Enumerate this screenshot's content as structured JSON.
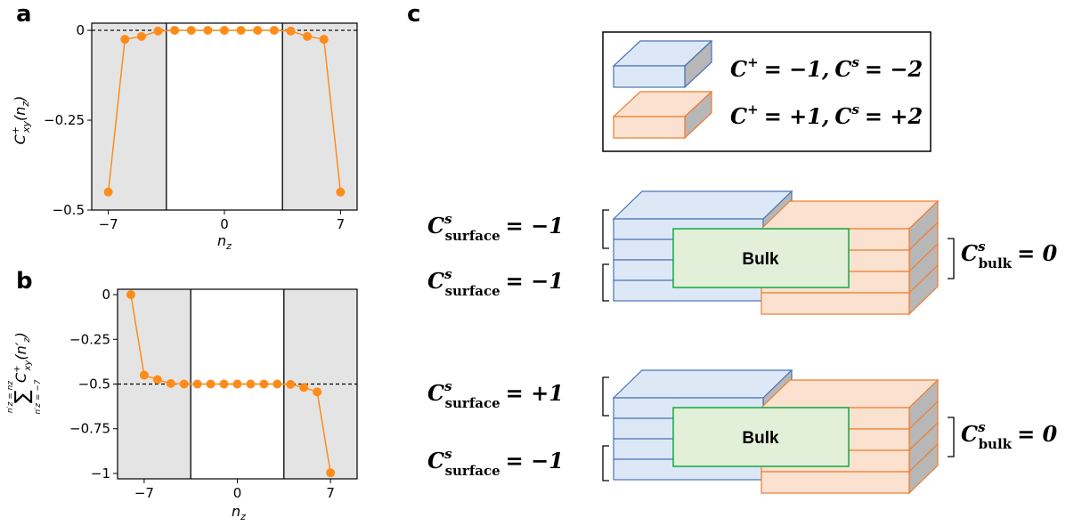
{
  "panels": {
    "a": "a",
    "b": "b",
    "c": "c"
  },
  "colors": {
    "orange": "#ff8c1a",
    "shade": "#e4e4e4",
    "blue_fill": "#dde8f6",
    "blue_edge": "#4a72b8",
    "orange_fill": "#fbe1cf",
    "orange_edge": "#ed7d31",
    "side_fill": "#b7b7b7",
    "bulk_fill": "#e2efd9",
    "bulk_edge": "#1fae4a"
  },
  "chart_data": [
    {
      "panel": "a",
      "type": "line",
      "marker": "circle",
      "x": [
        -7,
        -6,
        -5,
        -4,
        -3,
        -2,
        -1,
        0,
        1,
        2,
        3,
        4,
        5,
        6,
        7
      ],
      "values": [
        -0.45,
        -0.025,
        -0.017,
        -0.002,
        0,
        0,
        0,
        0,
        0,
        0,
        0,
        -0.002,
        -0.017,
        -0.025,
        -0.45
      ],
      "xlabel_base": "n",
      "xlabel_sub": "z",
      "ylabel": "C",
      "ylabel_sup": "+",
      "ylabel_sub": "xy",
      "ylabel_arg": "(n",
      "ylabel_arg_sub": "z",
      "ylabel_close": ")",
      "xticks": [
        -7,
        0,
        7
      ],
      "xtick_labels": [
        "−7",
        "0",
        "7"
      ],
      "yticks": [
        0,
        -0.25,
        -0.5
      ],
      "ytick_labels": [
        "0",
        "−0.25",
        "−0.5"
      ],
      "xlim": [
        -8,
        8
      ],
      "ylim": [
        -0.5,
        0.02
      ],
      "dashed_reference_y": 0,
      "shaded_x_ranges": [
        [
          -8,
          -3.5
        ],
        [
          3.5,
          8
        ]
      ],
      "vertical_lines_x": [
        -3.5,
        3.5
      ]
    },
    {
      "panel": "b",
      "type": "line",
      "marker": "circle",
      "x": [
        -8,
        -7,
        -6,
        -5,
        -4,
        -3,
        -2,
        -1,
        0,
        1,
        2,
        3,
        4,
        5,
        6,
        7
      ],
      "values": [
        0,
        -0.45,
        -0.475,
        -0.497,
        -0.5,
        -0.5,
        -0.5,
        -0.5,
        -0.5,
        -0.5,
        -0.5,
        -0.5,
        -0.502,
        -0.519,
        -0.544,
        -0.996
      ],
      "xlabel_base": "n",
      "xlabel_sub": "z",
      "ylabel_sum_top": "n′z = nz",
      "ylabel_sum_symbol": "∑",
      "ylabel_sum_bottom": "n′z = −7",
      "ylabel_term": "C",
      "ylabel_term_sup": "+",
      "ylabel_term_sub": "xy",
      "ylabel_term_arg": "(n′",
      "ylabel_term_arg_sub": "z",
      "ylabel_term_close": ")",
      "xticks": [
        -7,
        0,
        7
      ],
      "xtick_labels": [
        "−7",
        "0",
        "7"
      ],
      "yticks": [
        0,
        -0.25,
        -0.5,
        -0.75,
        -1
      ],
      "ytick_labels": [
        "0",
        "−0.25",
        "−0.5",
        "−0.75",
        "−1"
      ],
      "xlim": [
        -9,
        9
      ],
      "ylim": [
        -1.03,
        0.03
      ],
      "dashed_reference_y": -0.5,
      "shaded_x_ranges": [
        [
          -9,
          -3.5
        ],
        [
          3.5,
          9
        ]
      ],
      "vertical_lines_x": [
        -3.5,
        3.5
      ]
    }
  ],
  "legend": [
    {
      "text": "C⁺ = −1, Cˢ = −2",
      "color": "blue"
    },
    {
      "text": "C⁺ = +1, Cˢ = +2",
      "color": "orange"
    }
  ],
  "diagram_top": {
    "surface_top": "Cˢsurface = −1",
    "surface_bottom": "Cˢsurface = −1",
    "bulk_value": "Cˢbulk = 0",
    "bulk_label": "Bulk"
  },
  "diagram_bottom": {
    "surface_top": "Cˢsurface = +1",
    "surface_bottom": "Cˢsurface = −1",
    "bulk_value": "Cˢbulk = 0",
    "bulk_label": "Bulk"
  },
  "math": {
    "C": "C",
    "s": "s",
    "plus": "+",
    "surface": "surface",
    "bulk": "bulk",
    "eq_m1": "= −1",
    "eq_p1": "= +1",
    "eq_0": "= 0",
    "leg1_a": "= −1,",
    "leg1_b": "= −2",
    "leg2_a": "= +1,",
    "leg2_b": "= +2"
  }
}
